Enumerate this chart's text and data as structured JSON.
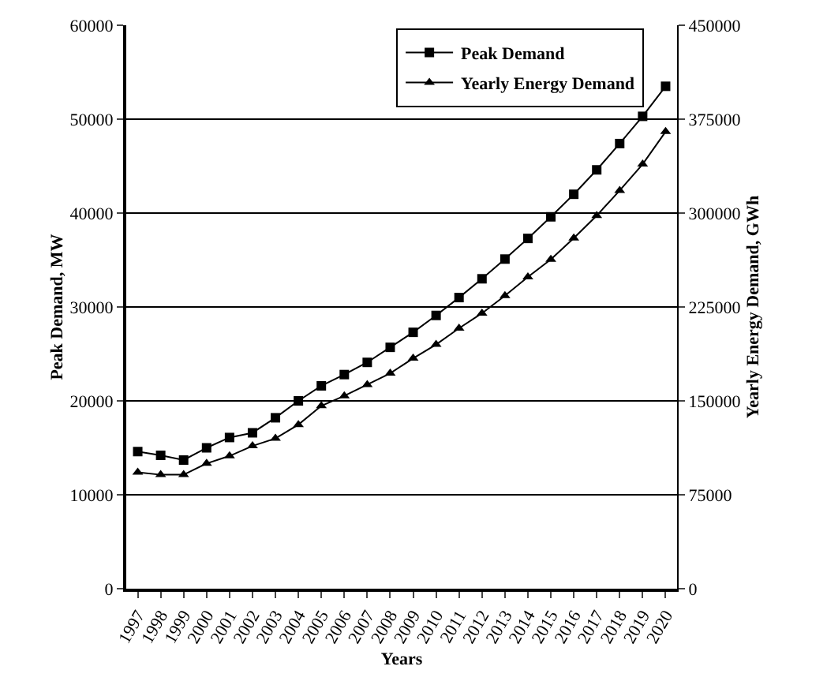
{
  "chart_data": {
    "type": "line",
    "xlabel": "Years",
    "ylabel": "Peak Demand, MW",
    "y2label": "Yearly Energy Demand, GWh",
    "categories": [
      "1997",
      "1998",
      "1999",
      "2000",
      "2001",
      "2002",
      "2003",
      "2004",
      "2005",
      "2006",
      "2007",
      "2008",
      "2009",
      "2010",
      "2011",
      "2012",
      "2013",
      "2014",
      "2015",
      "2016",
      "2017",
      "2018",
      "2019",
      "2020"
    ],
    "series": [
      {
        "name": "Peak Demand",
        "color": "#000000",
        "marker": "square",
        "values": [
          14600,
          14200,
          13700,
          15000,
          16100,
          16600,
          18200,
          20000,
          21600,
          22800,
          24100,
          25700,
          27300,
          29100,
          31000,
          33000,
          35100,
          37300,
          39600,
          42000,
          44600,
          47400,
          50300,
          53500
        ]
      },
      {
        "name": "Yearly Energy Demand",
        "color": "#000000",
        "marker": "triangle",
        "axis": "y2",
        "values": [
          93000,
          91000,
          91000,
          100000,
          106000,
          114000,
          120000,
          131000,
          146000,
          154000,
          163000,
          172000,
          184000,
          195000,
          208000,
          220000,
          234000,
          249000,
          263000,
          280000,
          298000,
          318000,
          339000,
          365000
        ]
      }
    ],
    "ylim": [
      0,
      60000
    ],
    "yticks": [
      0,
      10000,
      20000,
      30000,
      40000,
      50000,
      60000
    ],
    "y2lim": [
      0,
      450000
    ],
    "y2ticks": [
      0,
      75000,
      150000,
      225000,
      300000,
      375000,
      450000
    ],
    "grid": "y",
    "legend": "top right",
    "line_style": "solid"
  }
}
